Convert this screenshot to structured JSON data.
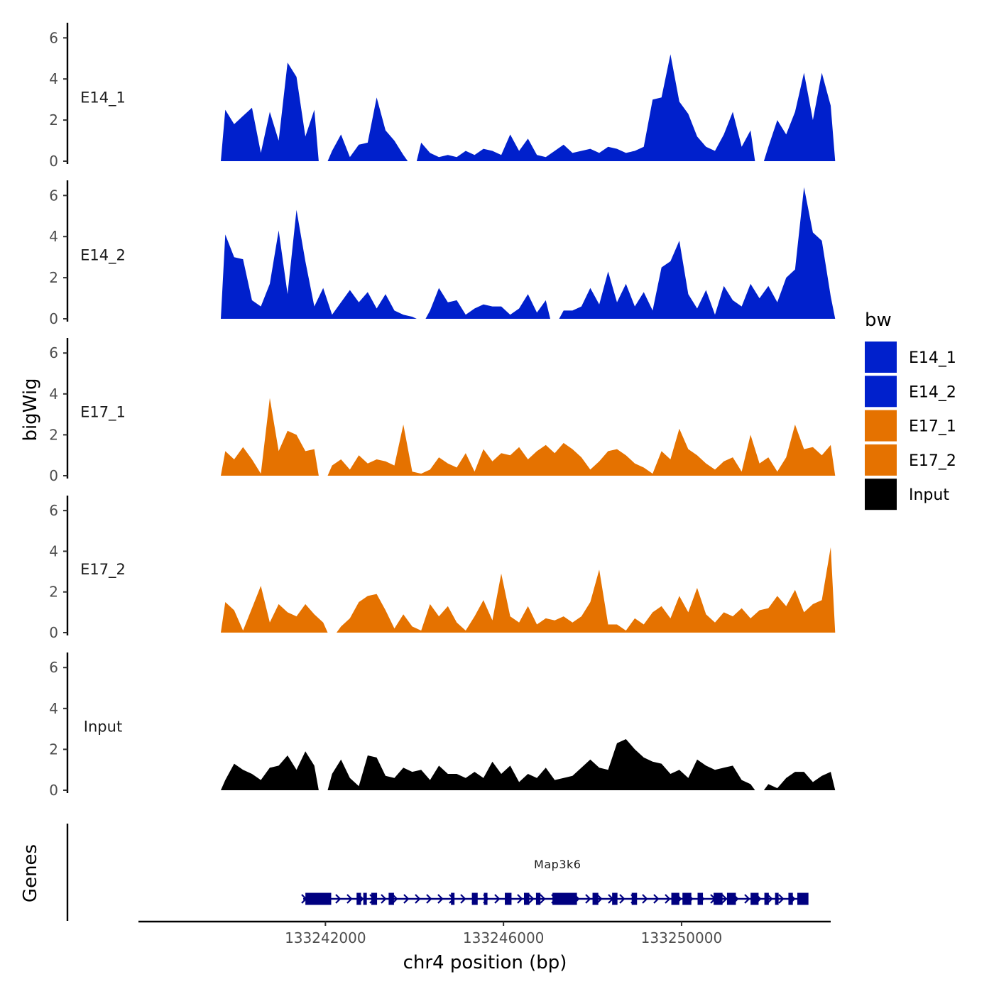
{
  "chart_data": {
    "type": "area",
    "title": "",
    "xlabel": "chr4 position (bp)",
    "ylabel": "bigWig",
    "ylim": [
      0,
      6.6
    ],
    "yticks": [
      "0",
      "2",
      "4",
      "6"
    ],
    "xlim": [
      133237800,
      133253350
    ],
    "xticks": [
      {
        "value": 133242000,
        "label": "133242000"
      },
      {
        "value": 133246000,
        "label": "133246000"
      },
      {
        "value": 133250000,
        "label": "133250000"
      }
    ],
    "region_start": 133239650,
    "bin_size": 200,
    "legend": {
      "title": "bw",
      "position": "right",
      "entries": [
        {
          "name": "E14_1",
          "color": "#0020cc"
        },
        {
          "name": "E14_2",
          "color": "#0020cc"
        },
        {
          "name": "E17_1",
          "color": "#e57200"
        },
        {
          "name": "E17_2",
          "color": "#e57200"
        },
        {
          "name": "Input",
          "color": "#000000"
        }
      ]
    },
    "series": [
      {
        "name": "E14_1",
        "color": "#0020cc",
        "values": [
          2.5,
          1.8,
          2.2,
          2.6,
          0.4,
          2.4,
          1.0,
          4.8,
          4.1,
          1.2,
          2.5,
          null,
          0.5,
          1.3,
          0.2,
          0.8,
          0.9,
          3.1,
          1.5,
          1.0,
          0.3,
          null,
          0.9,
          0.4,
          0.2,
          0.3,
          0.2,
          0.5,
          0.3,
          0.6,
          0.5,
          0.3,
          1.3,
          0.5,
          1.1,
          0.3,
          0.2,
          0.5,
          0.8,
          0.4,
          0.5,
          0.6,
          0.4,
          0.7,
          0.6,
          0.4,
          0.5,
          0.7,
          3.0,
          3.1,
          5.2,
          2.9,
          2.3,
          1.2,
          0.7,
          0.5,
          1.3,
          2.4,
          0.7,
          1.5,
          null,
          0.7,
          2.0,
          1.3,
          2.4,
          4.3,
          2.0,
          4.3,
          2.7
        ]
      },
      {
        "name": "E14_2",
        "color": "#0020cc",
        "values": [
          4.1,
          3.0,
          2.9,
          0.9,
          0.6,
          1.7,
          4.3,
          1.2,
          5.3,
          2.8,
          0.6,
          1.5,
          0.2,
          0.8,
          1.4,
          0.8,
          1.3,
          0.5,
          1.2,
          0.4,
          0.2,
          0.1,
          null,
          0.4,
          1.5,
          0.8,
          0.9,
          0.2,
          0.5,
          0.7,
          0.6,
          0.6,
          0.2,
          0.5,
          1.2,
          0.3,
          0.9,
          null,
          0.4,
          0.4,
          0.6,
          1.5,
          0.7,
          2.3,
          0.8,
          1.7,
          0.6,
          1.3,
          0.4,
          2.5,
          2.8,
          3.8,
          1.2,
          0.5,
          1.4,
          0.2,
          1.6,
          0.9,
          0.6,
          1.7,
          1.0,
          1.6,
          0.8,
          2.0,
          2.4,
          6.4,
          4.2,
          3.8,
          1.1
        ]
      },
      {
        "name": "E17_1",
        "color": "#e57200",
        "values": [
          1.2,
          0.8,
          1.4,
          0.8,
          0.1,
          3.8,
          1.2,
          2.2,
          2.0,
          1.2,
          1.3,
          null,
          0.5,
          0.8,
          0.3,
          1.0,
          0.6,
          0.8,
          0.7,
          0.5,
          2.5,
          0.2,
          0.1,
          0.3,
          0.9,
          0.6,
          0.4,
          1.1,
          0.2,
          1.3,
          0.7,
          1.1,
          1.0,
          1.4,
          0.8,
          1.2,
          1.5,
          1.1,
          1.6,
          1.3,
          0.9,
          0.3,
          0.7,
          1.2,
          1.3,
          1.0,
          0.6,
          0.4,
          0.1,
          1.2,
          0.8,
          2.3,
          1.3,
          1.0,
          0.6,
          0.3,
          0.7,
          0.9,
          0.2,
          2.0,
          0.6,
          0.9,
          0.2,
          0.9,
          2.5,
          1.3,
          1.4,
          1.0,
          1.5
        ]
      },
      {
        "name": "E17_2",
        "color": "#e57200",
        "values": [
          1.5,
          1.1,
          0.1,
          1.2,
          2.3,
          0.5,
          1.4,
          1.0,
          0.8,
          1.4,
          0.9,
          0.5,
          null,
          0.3,
          0.7,
          1.5,
          1.8,
          1.9,
          1.1,
          0.2,
          0.9,
          0.3,
          0.1,
          1.4,
          0.8,
          1.3,
          0.5,
          0.1,
          0.8,
          1.6,
          0.6,
          2.9,
          0.8,
          0.5,
          1.3,
          0.4,
          0.7,
          0.6,
          0.8,
          0.5,
          0.8,
          1.5,
          3.1,
          0.4,
          0.4,
          0.1,
          0.7,
          0.4,
          1.0,
          1.3,
          0.7,
          1.8,
          1.0,
          2.2,
          0.9,
          0.5,
          1.0,
          0.8,
          1.2,
          0.7,
          1.1,
          1.2,
          1.8,
          1.3,
          2.1,
          1.0,
          1.4,
          1.6,
          4.2
        ]
      },
      {
        "name": "Input",
        "color": "#000000",
        "values": [
          0.5,
          1.3,
          1.0,
          0.8,
          0.5,
          1.1,
          1.2,
          1.7,
          1.0,
          1.9,
          1.2,
          null,
          0.8,
          1.5,
          0.6,
          0.2,
          1.7,
          1.6,
          0.7,
          0.6,
          1.1,
          0.9,
          1.0,
          0.5,
          1.2,
          0.8,
          0.8,
          0.6,
          0.9,
          0.6,
          1.4,
          0.8,
          1.2,
          0.4,
          0.8,
          0.6,
          1.1,
          0.5,
          0.6,
          0.7,
          1.1,
          1.5,
          1.1,
          1.0,
          2.3,
          2.5,
          2.0,
          1.6,
          1.4,
          1.3,
          0.8,
          1.0,
          0.6,
          1.5,
          1.2,
          1.0,
          1.1,
          1.2,
          0.5,
          0.3,
          null,
          0.3,
          0.1,
          0.6,
          0.9,
          0.9,
          0.4,
          0.7,
          0.9
        ]
      }
    ],
    "genes_track": {
      "label": "Genes",
      "gene": {
        "name": "Map3k6",
        "strand": "+",
        "start": 133241500,
        "end": 133252800,
        "exons": [
          [
            133241550,
            133242130
          ],
          [
            133242700,
            133242800
          ],
          [
            133242850,
            133242900
          ],
          [
            133243030,
            133243160
          ],
          [
            133243420,
            133243540
          ],
          [
            133244820,
            133244900
          ],
          [
            133245290,
            133245420
          ],
          [
            133245560,
            133245640
          ],
          [
            133246030,
            133246180
          ],
          [
            133246460,
            133246580
          ],
          [
            133246730,
            133246830
          ],
          [
            133247100,
            133247650
          ],
          [
            133248000,
            133248130
          ],
          [
            133248440,
            133248560
          ],
          [
            133248880,
            133249000
          ],
          [
            133249770,
            133249950
          ],
          [
            133250020,
            133250220
          ],
          [
            133250360,
            133250480
          ],
          [
            133250720,
            133250920
          ],
          [
            133251020,
            133251220
          ],
          [
            133251550,
            133251730
          ],
          [
            133251860,
            133251960
          ],
          [
            133252100,
            133252180
          ],
          [
            133252400,
            133252500
          ],
          [
            133252600,
            133252850
          ]
        ]
      }
    }
  }
}
